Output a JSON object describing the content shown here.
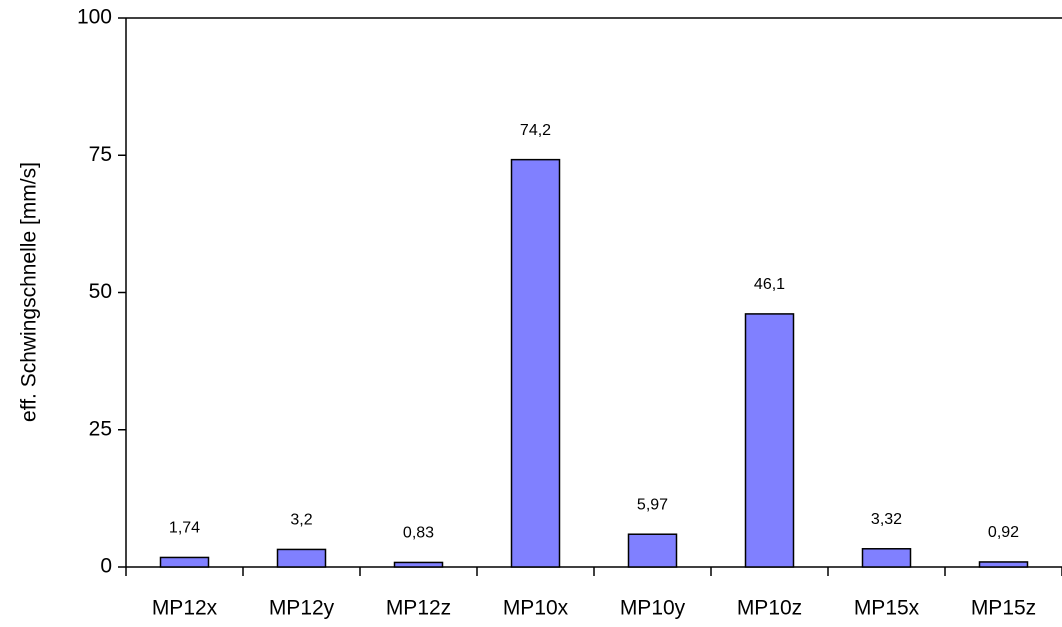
{
  "chart_data": {
    "type": "bar",
    "y_label": "eff. Schwingschnelle [mm/s]",
    "categories": [
      "MP12x",
      "MP12y",
      "MP12z",
      "MP10x",
      "MP10y",
      "MP10z",
      "MP15x",
      "MP15z"
    ],
    "values": [
      1.74,
      3.2,
      0.83,
      74.2,
      5.97,
      46.1,
      3.32,
      0.92
    ],
    "value_labels": [
      "1,74",
      "3,2",
      "0,83",
      "74,2",
      "5,97",
      "46,1",
      "3,32",
      "0,92"
    ],
    "color": "#8080ff",
    "ylim": [
      0,
      100
    ],
    "yticks": [
      0,
      25,
      50,
      75,
      100
    ],
    "grid": false
  }
}
